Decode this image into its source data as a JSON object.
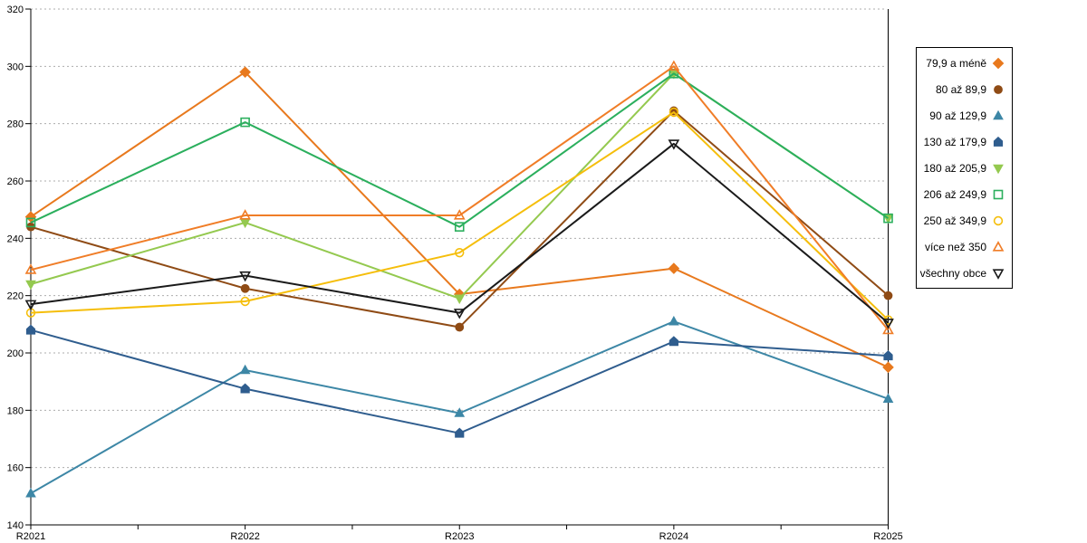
{
  "chart_data": {
    "type": "line",
    "title": "",
    "xlabel": "",
    "ylabel": "",
    "categories": [
      "R2021",
      "R2022",
      "R2023",
      "R2024",
      "R2025"
    ],
    "y_axis": {
      "min": 140,
      "max": 320,
      "step": 20,
      "tick_labels": [
        "140",
        "160",
        "180",
        "200",
        "220",
        "240",
        "260",
        "280",
        "300",
        "320"
      ]
    },
    "grid": "horizontal dotted",
    "legend_position": "right",
    "series": [
      {
        "name": "79,9 a méně",
        "marker": "diamond",
        "marker_style": "filled",
        "color": "#E8791D",
        "values": [
          247.5,
          298,
          220.5,
          229.5,
          195
        ]
      },
      {
        "name": "80 až 89,9",
        "marker": "circle",
        "marker_style": "filled",
        "color": "#8F4B15",
        "values": [
          244,
          222.5,
          209,
          284.5,
          220
        ]
      },
      {
        "name": "90 až 129,9",
        "marker": "triangle-up",
        "marker_style": "filled",
        "color": "#3D87A6",
        "values": [
          151,
          194,
          179,
          211,
          184
        ]
      },
      {
        "name": "130 až 179,9",
        "marker": "pentagon",
        "marker_style": "filled",
        "color": "#2F5D8E",
        "values": [
          208,
          187.5,
          172,
          204,
          199
        ]
      },
      {
        "name": "180 až 205,9",
        "marker": "triangle-down",
        "marker_style": "filled",
        "color": "#94C94F",
        "values": [
          224,
          245.5,
          219,
          297.5,
          247
        ]
      },
      {
        "name": "206 až 249,9",
        "marker": "square",
        "marker_style": "open",
        "color": "#2BAF5D",
        "values": [
          245.5,
          280.5,
          244,
          297.5,
          247
        ]
      },
      {
        "name": "250 až 349,9",
        "marker": "circle",
        "marker_style": "open",
        "color": "#F5BE0B",
        "values": [
          214,
          218,
          235,
          284,
          211.5
        ]
      },
      {
        "name": "více než 350",
        "marker": "triangle-up",
        "marker_style": "open",
        "color": "#F07D27",
        "values": [
          229,
          248,
          248,
          300,
          208
        ]
      },
      {
        "name": "všechny obce",
        "marker": "triangle-down",
        "marker_style": "open",
        "color": "#1A1A1A",
        "values": [
          217,
          227,
          214,
          273,
          210.5
        ]
      }
    ]
  }
}
